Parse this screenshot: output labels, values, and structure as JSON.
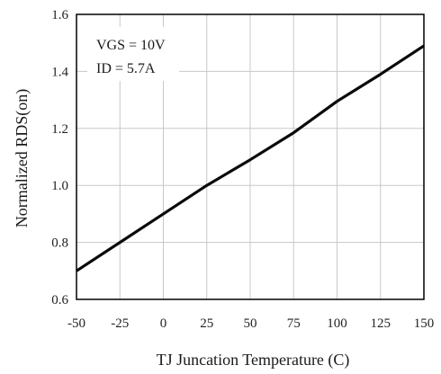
{
  "chart_data": {
    "type": "line",
    "title": "",
    "xlabel": "TJ Juncation Temperature (C)",
    "ylabel": "Normalized RDS(on)",
    "xlim": [
      -50,
      150
    ],
    "ylim": [
      0.6,
      1.6
    ],
    "x_ticks": [
      -50,
      -25,
      0,
      25,
      50,
      75,
      100,
      125,
      150
    ],
    "x_tick_labels": [
      "-50",
      "-25",
      "0",
      "25",
      "50",
      "75",
      "100",
      "125",
      "150"
    ],
    "y_ticks": [
      0.6,
      0.8,
      1.0,
      1.2,
      1.4,
      1.6
    ],
    "y_tick_labels": [
      "0.6",
      "0.8",
      "1.0",
      "1.2",
      "1.4",
      "1.6"
    ],
    "grid": true,
    "annotations": [
      "VGS = 10V",
      "ID = 5.7A"
    ],
    "series": [
      {
        "x": [
          -50,
          -25,
          0,
          25,
          50,
          75,
          100,
          125,
          150
        ],
        "values": [
          0.7,
          0.8,
          0.9,
          1.0,
          1.09,
          1.185,
          1.295,
          1.39,
          1.49
        ]
      }
    ],
    "colors": {
      "line": "#0a0a0a",
      "grid": "#c8c8c8",
      "frame": "#000000"
    }
  }
}
